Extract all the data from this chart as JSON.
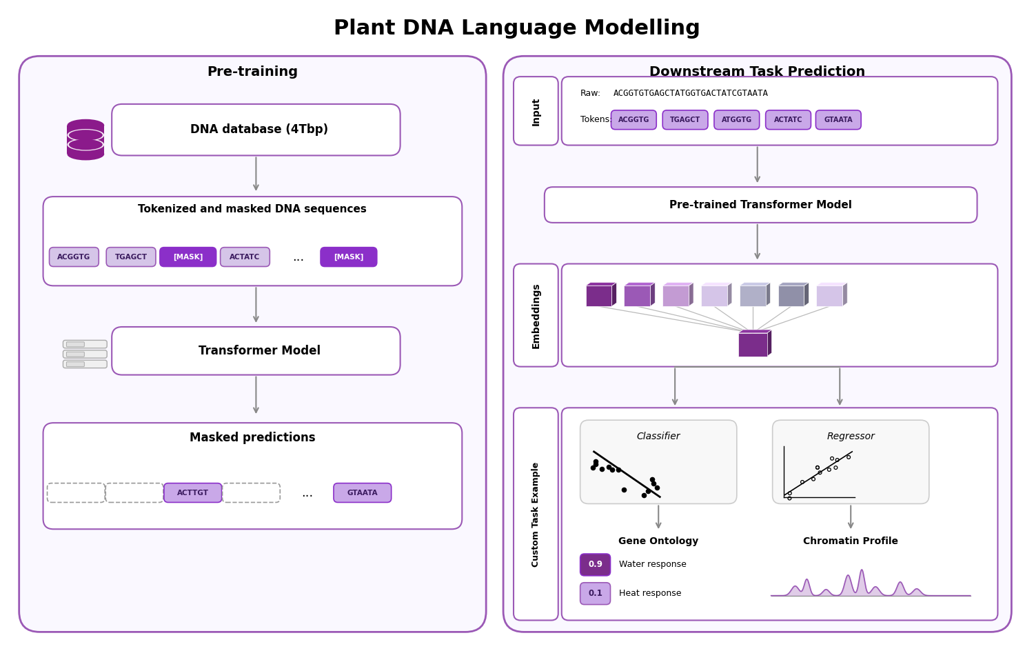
{
  "title": "Plant DNA Language Modelling",
  "title_fontsize": 22,
  "bg_color": "#ffffff",
  "left_panel_title": "Pre-training",
  "right_panel_title": "Downstream Task Prediction",
  "purple_dark": "#7b2d8b",
  "purple_mid": "#9b59b6",
  "purple_light": "#c39bd3",
  "purple_token_fill": "#d5c5e8",
  "gray_arrow": "#888888",
  "dna_label": "DNA database (4Tbp)",
  "tokenized_label": "Tokenized and masked DNA sequences",
  "transformer_label": "Transformer Model",
  "masked_pred_label": "Masked predictions",
  "pretrained_label": "Pre-trained Transformer Model",
  "embeddings_label": "Embeddings",
  "custom_task_label": "Custom Task Example",
  "input_label": "Input",
  "raw_seq": "ACGGTGTGAGCTATGGTGACTATCGTAATA",
  "tokens_input": [
    "ACGGTG",
    "TGAGCT",
    "ATGGTG",
    "ACTATC",
    "GTAATA"
  ],
  "gene_ontology_label": "Gene Ontology",
  "chromatin_label": "Chromatin Profile",
  "classifier_label": "Classifier",
  "regressor_label": "Regressor",
  "water_response": "0.9",
  "heat_response": "0.1",
  "water_label": "Water response",
  "heat_label": "Heat response",
  "cube_colors_top": [
    "#7b2d8b",
    "#9b59b6",
    "#c39bd3",
    "#d5c5e8",
    "#b0b0c8",
    "#9090a8",
    "#d5c5e8"
  ],
  "cube_color_bottom": "#7b2d8b"
}
